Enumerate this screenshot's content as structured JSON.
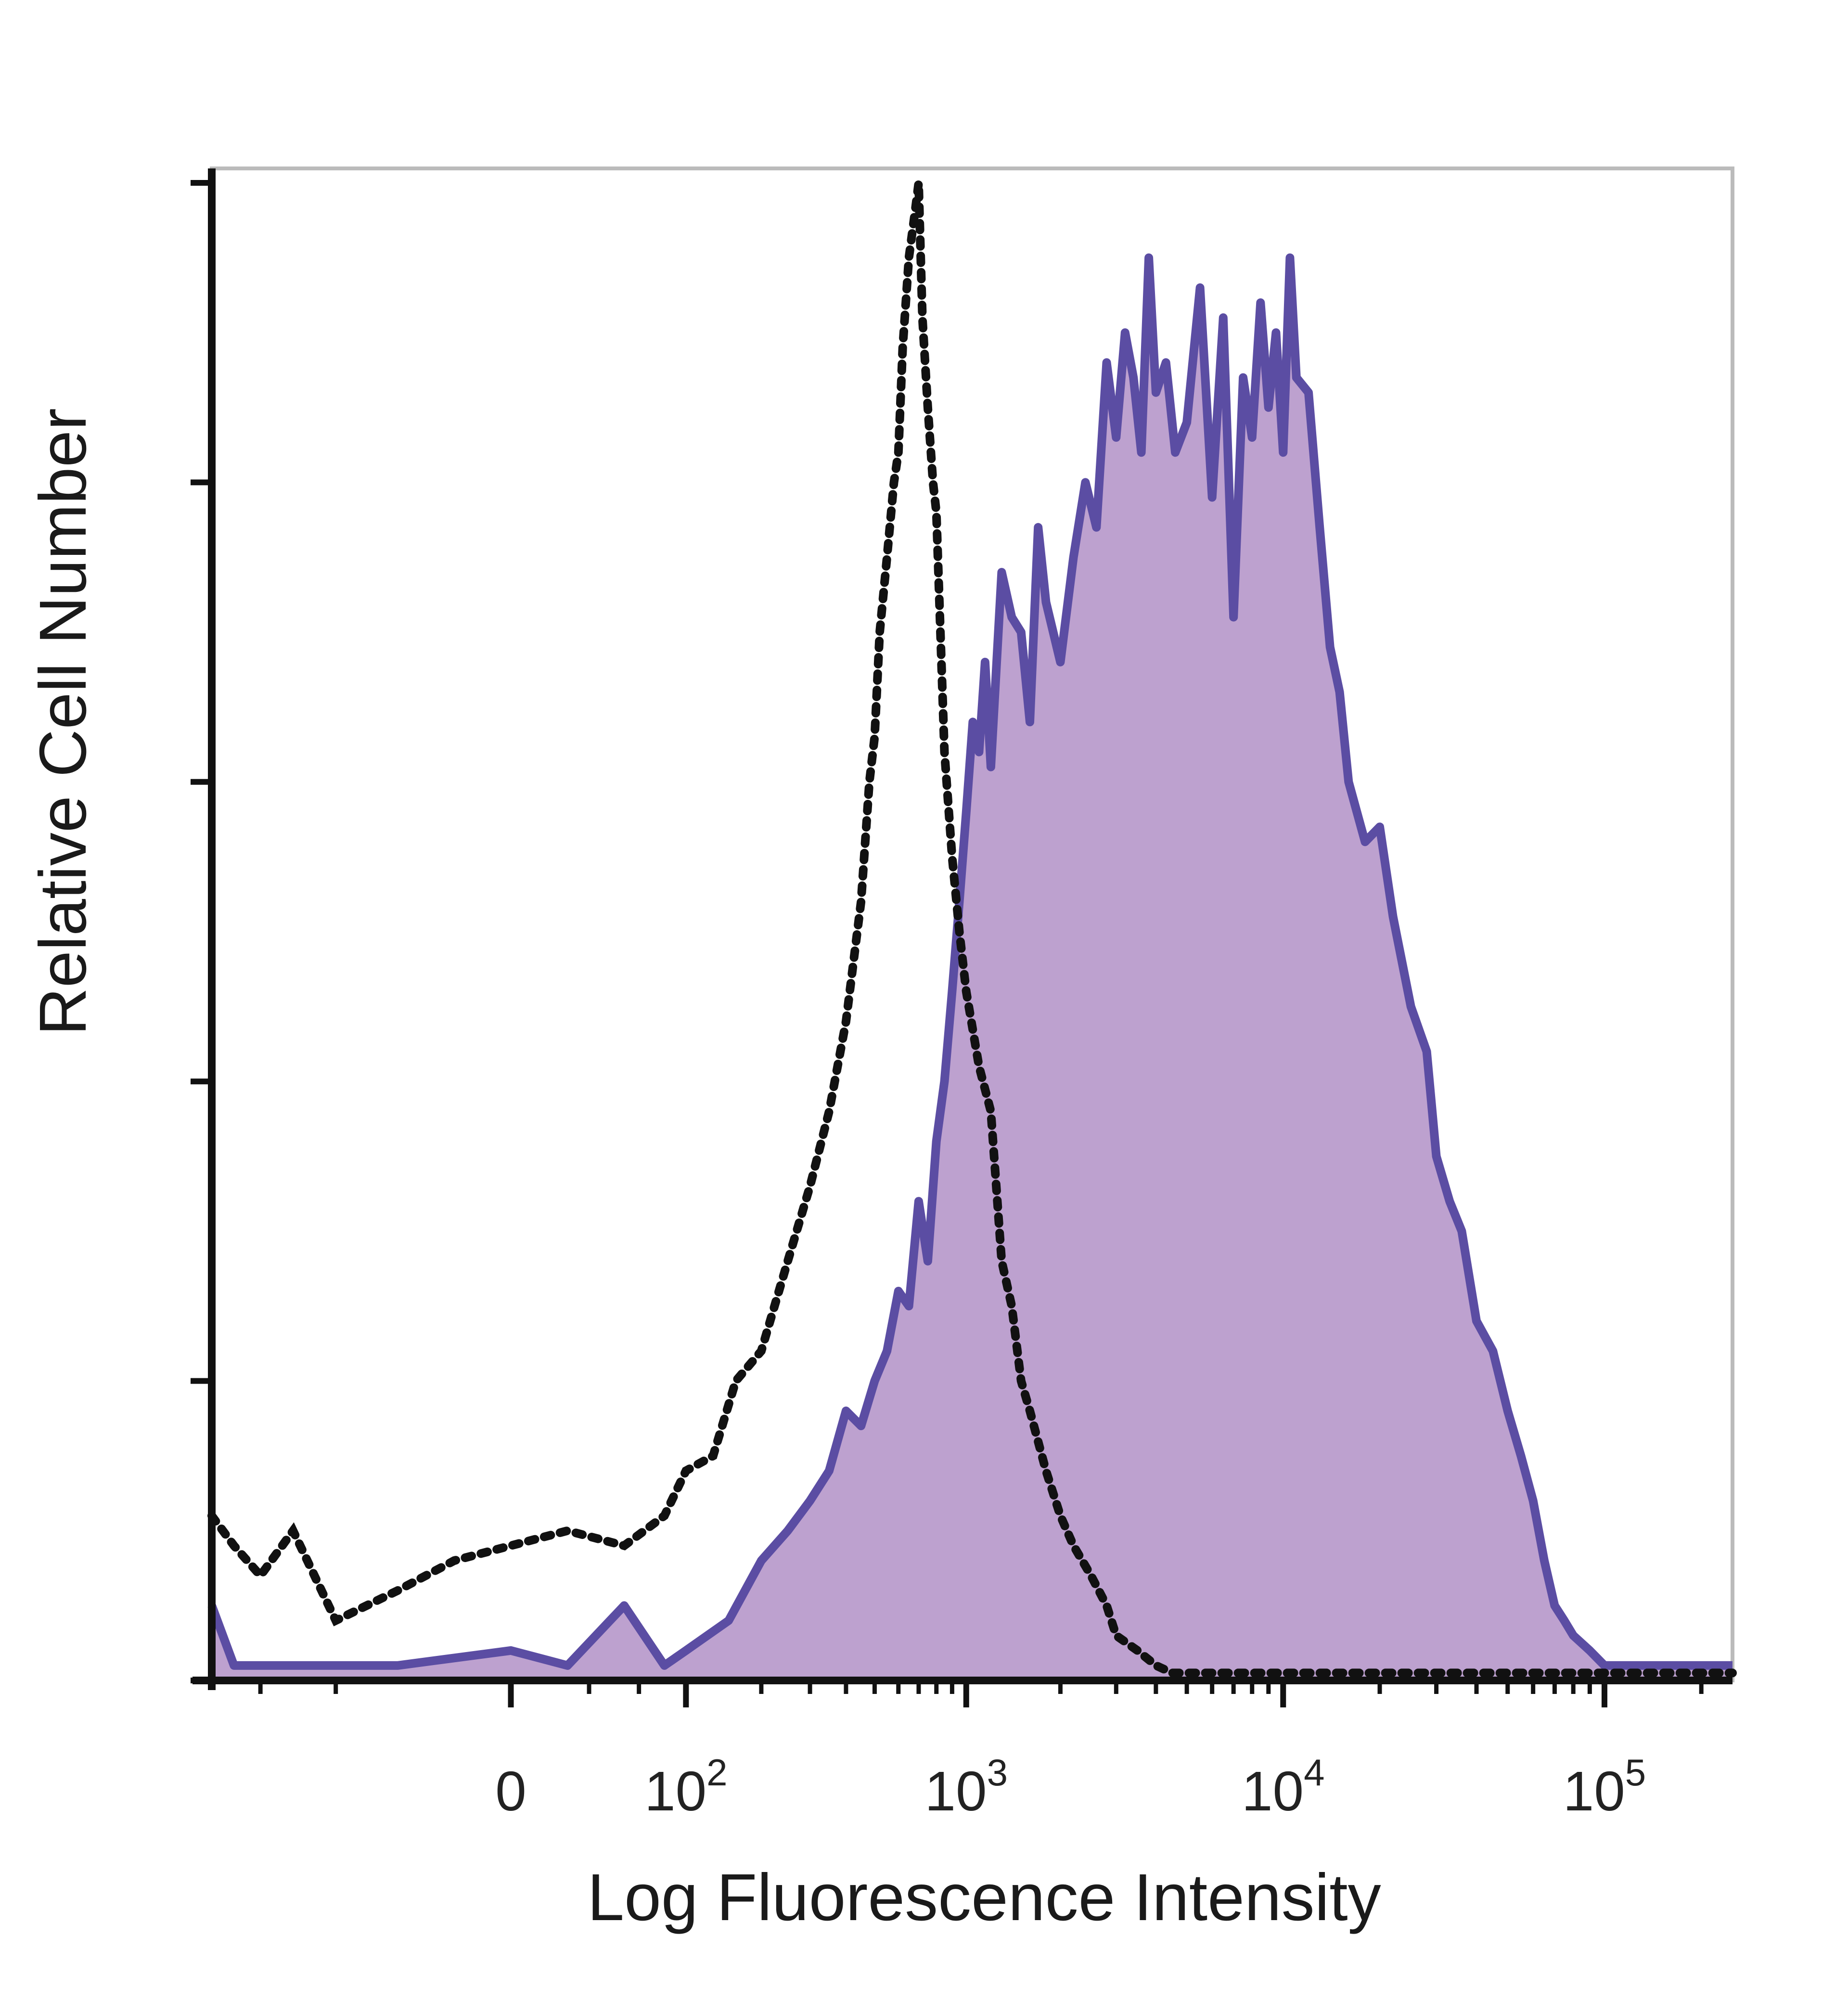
{
  "chart_data": {
    "type": "area",
    "title": "",
    "xlabel": "Log Fluorescence Intensity",
    "ylabel": "Relative Cell Number",
    "xscale": "biexponential",
    "x_ticks": [
      {
        "value": 0,
        "label": "0"
      },
      {
        "value": 100,
        "label": "10",
        "exp": "2"
      },
      {
        "value": 1000,
        "label": "10",
        "exp": "3"
      },
      {
        "value": 10000,
        "label": "10",
        "exp": "4"
      },
      {
        "value": 100000,
        "label": "10",
        "exp": "5"
      }
    ],
    "xlim": [
      -300,
      250000
    ],
    "ylim": [
      0,
      100
    ],
    "y_tick_values": [
      0,
      20,
      40,
      60,
      80,
      100
    ],
    "grid": false,
    "legend": "none",
    "colors": {
      "stained_fill": "#bda1cf",
      "stained_line": "#5b4da3",
      "control_line": "#111111",
      "frame": "#bbbbbb",
      "axis": "#111111"
    },
    "series": [
      {
        "style": "filled-solid",
        "x": [
          -300,
          -250,
          -200,
          -150,
          -100,
          -50,
          0,
          20,
          50,
          80,
          100,
          150,
          200,
          250,
          300,
          350,
          400,
          450,
          500,
          550,
          600,
          650,
          700,
          750,
          800,
          850,
          900,
          950,
          1000,
          1050,
          1100,
          1150,
          1200,
          1300,
          1400,
          1500,
          1600,
          1700,
          1800,
          2000,
          2200,
          2400,
          2600,
          2800,
          3000,
          3200,
          3400,
          3600,
          3800,
          4000,
          4300,
          4600,
          5000,
          5500,
          6000,
          6500,
          7000,
          7500,
          8000,
          8500,
          9000,
          9500,
          10000,
          10500,
          11000,
          12000,
          13000,
          14000,
          15000,
          16000,
          18000,
          20000,
          22000,
          25000,
          28000,
          30000,
          33000,
          36000,
          40000,
          45000,
          50000,
          55000,
          60000,
          65000,
          70000,
          75000,
          80000,
          90000,
          100000,
          110000,
          120000,
          140000,
          160000,
          180000,
          200000,
          250000
        ],
        "values": [
          5,
          1,
          1,
          1,
          1,
          1,
          2,
          1,
          5,
          1,
          2,
          4,
          8,
          10,
          12,
          14,
          18,
          17,
          20,
          22,
          26,
          25,
          32,
          28,
          36,
          40,
          46,
          52,
          58,
          64,
          62,
          68,
          61,
          74,
          71,
          70,
          64,
          77,
          72,
          68,
          75,
          80,
          77,
          88,
          83,
          90,
          87,
          82,
          95,
          86,
          88,
          82,
          84,
          93,
          79,
          91,
          71,
          87,
          83,
          92,
          85,
          90,
          82,
          95,
          87,
          86,
          77,
          69,
          66,
          60,
          56,
          57,
          51,
          45,
          42,
          35,
          32,
          30,
          24,
          22,
          18,
          15,
          12,
          8,
          5,
          4,
          3,
          2,
          1,
          1,
          1,
          1,
          1,
          1,
          1,
          1
        ]
      },
      {
        "style": "dotted-line",
        "x": [
          -300,
          -250,
          -200,
          -150,
          -100,
          -50,
          -20,
          0,
          20,
          50,
          80,
          100,
          130,
          160,
          200,
          250,
          300,
          350,
          400,
          450,
          480,
          500,
          520,
          550,
          580,
          600,
          620,
          650,
          680,
          700,
          720,
          750,
          780,
          800,
          850,
          900,
          950,
          1000,
          1100,
          1200,
          1300,
          1400,
          1500,
          1600,
          1800,
          2000,
          2200,
          2500,
          2800,
          3000,
          3500,
          4000,
          4500,
          5000,
          6000,
          8000,
          10000,
          20000,
          50000,
          100000,
          250000
        ],
        "values": [
          11,
          9,
          7,
          10,
          4,
          6,
          8,
          9,
          10,
          9,
          11,
          14,
          15,
          20,
          22,
          28,
          33,
          38,
          44,
          52,
          60,
          63,
          70,
          75,
          80,
          82,
          89,
          95,
          98,
          100,
          91,
          85,
          80,
          78,
          62,
          55,
          50,
          46,
          41,
          38,
          28,
          25,
          20,
          18,
          14,
          11,
          9,
          7,
          5,
          3,
          2,
          1,
          0.5,
          0.5,
          0.5,
          0.5,
          0.5,
          0.5,
          0.5,
          0.5,
          0.5
        ]
      }
    ]
  }
}
